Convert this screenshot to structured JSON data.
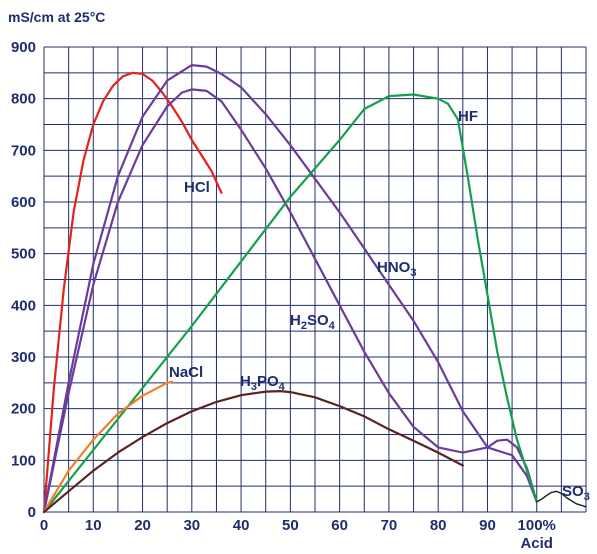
{
  "chart_data": {
    "type": "line",
    "ylabel": "mS/cm  at  25°C",
    "xlim": [
      0,
      110
    ],
    "ylim": [
      0,
      900
    ],
    "x_ticks": [
      {
        "value": 0,
        "label": "0"
      },
      {
        "value": 10,
        "label": "10"
      },
      {
        "value": 20,
        "label": "20"
      },
      {
        "value": 30,
        "label": "30"
      },
      {
        "value": 40,
        "label": "40"
      },
      {
        "value": 50,
        "label": "50"
      },
      {
        "value": 60,
        "label": "60"
      },
      {
        "value": 70,
        "label": "70"
      },
      {
        "value": 80,
        "label": "80"
      },
      {
        "value": 90,
        "label": "90"
      },
      {
        "value": 100,
        "label": "100%"
      }
    ],
    "x_tick_sublabel": "Acid",
    "y_ticks": [
      0,
      100,
      200,
      300,
      400,
      500,
      600,
      700,
      800,
      900
    ],
    "grid": true,
    "series": [
      {
        "name": "HCl",
        "color": "#e2231a",
        "label": {
          "text": "HCl",
          "sub": "",
          "suffix": ""
        },
        "points": [
          [
            0,
            0
          ],
          [
            2,
            240
          ],
          [
            4,
            430
          ],
          [
            6,
            580
          ],
          [
            8,
            680
          ],
          [
            10,
            750
          ],
          [
            12,
            795
          ],
          [
            14,
            825
          ],
          [
            16,
            843
          ],
          [
            18,
            850
          ],
          [
            20,
            848
          ],
          [
            22,
            835
          ],
          [
            24,
            812
          ],
          [
            26,
            785
          ],
          [
            28,
            755
          ],
          [
            30,
            720
          ],
          [
            32,
            690
          ],
          [
            34,
            660
          ],
          [
            36,
            618
          ]
        ]
      },
      {
        "name": "HNO3",
        "color": "#6a3d9a",
        "label": {
          "text": "HNO",
          "sub": "3",
          "suffix": ""
        },
        "points": [
          [
            0,
            0
          ],
          [
            5,
            250
          ],
          [
            10,
            480
          ],
          [
            15,
            650
          ],
          [
            20,
            765
          ],
          [
            25,
            835
          ],
          [
            30,
            865
          ],
          [
            33,
            862
          ],
          [
            36,
            848
          ],
          [
            40,
            822
          ],
          [
            45,
            770
          ],
          [
            50,
            710
          ],
          [
            55,
            645
          ],
          [
            60,
            580
          ],
          [
            65,
            510
          ],
          [
            70,
            440
          ],
          [
            75,
            370
          ],
          [
            80,
            290
          ],
          [
            85,
            195
          ],
          [
            90,
            125
          ],
          [
            95,
            110
          ],
          [
            98,
            70
          ],
          [
            100,
            20
          ]
        ]
      },
      {
        "name": "H2SO4",
        "color": "#6a3d9a",
        "label": {
          "text": "H",
          "sub": "2",
          "suffix": "SO4"
        },
        "points": [
          [
            0,
            0
          ],
          [
            5,
            230
          ],
          [
            10,
            440
          ],
          [
            15,
            600
          ],
          [
            20,
            710
          ],
          [
            25,
            785
          ],
          [
            28,
            812
          ],
          [
            30,
            818
          ],
          [
            33,
            815
          ],
          [
            36,
            795
          ],
          [
            40,
            740
          ],
          [
            45,
            665
          ],
          [
            50,
            580
          ],
          [
            55,
            490
          ],
          [
            60,
            400
          ],
          [
            65,
            310
          ],
          [
            70,
            230
          ],
          [
            75,
            165
          ],
          [
            80,
            125
          ],
          [
            85,
            115
          ],
          [
            90,
            125
          ],
          [
            92,
            138
          ],
          [
            94,
            140
          ],
          [
            96,
            125
          ],
          [
            98,
            85
          ],
          [
            100,
            20
          ]
        ]
      },
      {
        "name": "HF",
        "color": "#13a049",
        "label": {
          "text": "HF",
          "sub": "",
          "suffix": ""
        },
        "points": [
          [
            0,
            0
          ],
          [
            10,
            120
          ],
          [
            20,
            240
          ],
          [
            30,
            360
          ],
          [
            40,
            485
          ],
          [
            50,
            610
          ],
          [
            60,
            720
          ],
          [
            65,
            780
          ],
          [
            70,
            805
          ],
          [
            75,
            808
          ],
          [
            80,
            800
          ],
          [
            82,
            790
          ],
          [
            84,
            760
          ],
          [
            86,
            650
          ],
          [
            88,
            530
          ],
          [
            90,
            420
          ],
          [
            92,
            310
          ],
          [
            94,
            220
          ],
          [
            96,
            140
          ],
          [
            98,
            80
          ],
          [
            100,
            20
          ]
        ]
      },
      {
        "name": "NaCl",
        "color": "#f07f2a",
        "label": {
          "text": "NaCl",
          "sub": "",
          "suffix": ""
        },
        "points": [
          [
            0,
            0
          ],
          [
            5,
            80
          ],
          [
            10,
            140
          ],
          [
            15,
            190
          ],
          [
            20,
            225
          ],
          [
            25,
            250
          ],
          [
            26,
            252
          ]
        ]
      },
      {
        "name": "H3PO4",
        "color": "#5b2321",
        "label": {
          "text": "H",
          "sub": "3",
          "suffix": "PO4"
        },
        "points": [
          [
            0,
            0
          ],
          [
            5,
            40
          ],
          [
            10,
            80
          ],
          [
            15,
            115
          ],
          [
            20,
            145
          ],
          [
            25,
            172
          ],
          [
            30,
            195
          ],
          [
            35,
            213
          ],
          [
            40,
            226
          ],
          [
            45,
            233
          ],
          [
            48,
            234
          ],
          [
            50,
            232
          ],
          [
            55,
            222
          ],
          [
            60,
            205
          ],
          [
            65,
            185
          ],
          [
            70,
            160
          ],
          [
            75,
            138
          ],
          [
            80,
            115
          ],
          [
            85,
            90
          ]
        ]
      },
      {
        "name": "SO3",
        "color": "#1f1f1f",
        "label": {
          "text": "SO",
          "sub": "3",
          "suffix": ""
        },
        "points": [
          [
            100,
            20
          ],
          [
            101,
            25
          ],
          [
            102,
            32
          ],
          [
            103,
            38
          ],
          [
            104,
            40
          ],
          [
            105,
            36
          ],
          [
            106,
            28
          ],
          [
            107,
            22
          ],
          [
            108,
            16
          ],
          [
            110,
            10
          ]
        ]
      }
    ]
  }
}
